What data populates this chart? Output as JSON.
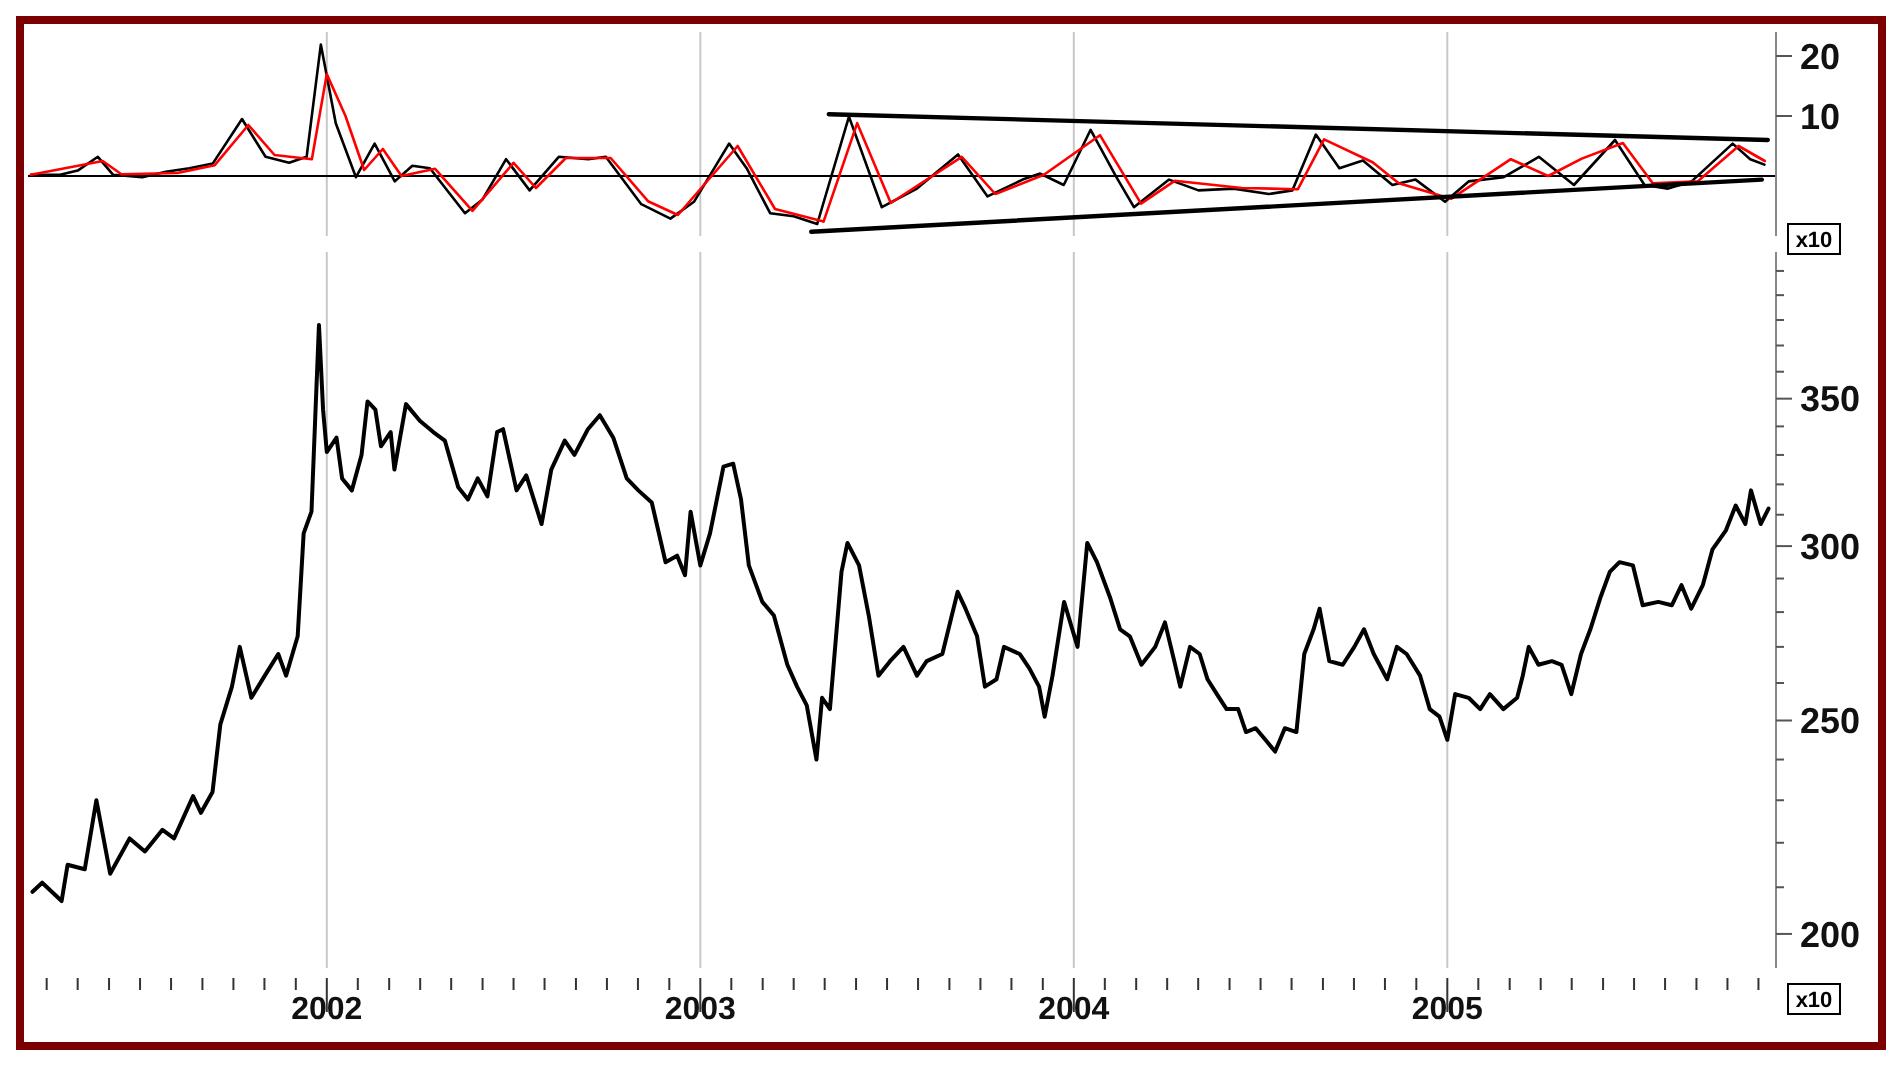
{
  "chart_data": [
    {
      "type": "line",
      "xlim": [
        2001.2,
        2005.88
      ],
      "ylim": [
        -10,
        24
      ],
      "xticks": [
        2002,
        2003,
        2004,
        2005
      ],
      "yticks": [
        10,
        20
      ],
      "grid": "x",
      "tick_labels": "y",
      "ref_lines": [
        {
          "axis": "y",
          "value": 0,
          "color": "#000000"
        }
      ],
      "annotations": [
        "x10"
      ],
      "series": [
        {
          "color": "#000000",
          "x": [
            2001.208,
            2001.286,
            2001.333,
            2001.387,
            2001.428,
            2001.506,
            2001.569,
            2001.632,
            2001.695,
            2001.773,
            2001.836,
            2001.899,
            2001.946,
            2001.984,
            2002.024,
            2002.078,
            2002.128,
            2002.182,
            2002.229,
            2002.276,
            2002.37,
            2002.417,
            2002.48,
            2002.543,
            2002.621,
            2002.7,
            2002.747,
            2002.842,
            2002.92,
            2002.983,
            2003.077,
            2003.124,
            2003.187,
            2003.25,
            2003.313,
            2003.398,
            2003.486,
            2003.58,
            2003.69,
            2003.769,
            2003.863,
            2003.91,
            2003.973,
            2004.045,
            2004.114,
            2004.161,
            2004.255,
            2004.334,
            2004.428,
            2004.522,
            2004.585,
            2004.648,
            2004.711,
            2004.774,
            2004.853,
            2004.915,
            2004.994,
            2005.057,
            2005.151,
            2005.245,
            2005.339,
            2005.449,
            2005.528,
            2005.591,
            2005.654,
            2005.764,
            2005.811,
            2005.849
          ],
          "values": [
            0.2,
            0.2,
            0.9,
            3.2,
            0.2,
            -0.2,
            0.7,
            1.3,
            2.1,
            9.5,
            3.2,
            2.2,
            3.2,
            21.9,
            8.8,
            -0.2,
            5.4,
            -0.9,
            1.7,
            1.3,
            -6.2,
            -3.9,
            2.8,
            -2.4,
            3.2,
            2.8,
            3.2,
            -4.7,
            -7.1,
            -4.3,
            5.4,
            1.3,
            -6.2,
            -6.7,
            -8,
            9.9,
            -5.2,
            -2.1,
            3.6,
            -3.4,
            -0.6,
            0.4,
            -1.5,
            7.7,
            -0.2,
            -5.2,
            -0.6,
            -2.4,
            -2.1,
            -3,
            -2.4,
            6.9,
            1.3,
            2.6,
            -1.5,
            -0.6,
            -4.3,
            -0.9,
            -0.2,
            3.2,
            -1.5,
            6,
            -1.5,
            -2.1,
            -0.9,
            5.4,
            2.8,
            1.9
          ]
        },
        {
          "color": "#ff0000",
          "x": [
            2001.208,
            2001.4,
            2001.45,
            2001.6,
            2001.7,
            2001.79,
            2001.86,
            2001.96,
            2002.0,
            2002.05,
            2002.1,
            2002.15,
            2002.2,
            2002.29,
            2002.39,
            2002.5,
            2002.56,
            2002.64,
            2002.76,
            2002.86,
            2002.94,
            2003.1,
            2003.2,
            2003.33,
            2003.42,
            2003.51,
            2003.7,
            2003.79,
            2003.92,
            2004.07,
            2004.18,
            2004.27,
            2004.45,
            2004.6,
            2004.67,
            2004.8,
            2004.87,
            2005.01,
            2005.17,
            2005.27,
            2005.36,
            2005.47,
            2005.55,
            2005.67,
            2005.78,
            2005.85
          ],
          "values": [
            0.2,
            2.5,
            0.3,
            0.5,
            1.8,
            8.5,
            3.5,
            2.8,
            17,
            10,
            1,
            4.5,
            0,
            1.2,
            -5.8,
            2.2,
            -2,
            3,
            3,
            -4.2,
            -6.5,
            5,
            -5.5,
            -7.6,
            8.8,
            -4.5,
            3.2,
            -3,
            0.2,
            6.8,
            -4.6,
            -0.8,
            -2,
            -2.2,
            6.1,
            2.3,
            -1.2,
            -3.8,
            2.8,
            0,
            2.9,
            5.5,
            -1.2,
            -0.9,
            5,
            2.5
          ]
        },
        {
          "color": "#000000",
          "x": [
            2003.344,
            2005.858
          ],
          "values": [
            10.3,
            6
          ]
        },
        {
          "color": "#000000",
          "x": [
            2003.297,
            2005.842
          ],
          "values": [
            -9.3,
            -0.6
          ]
        }
      ]
    },
    {
      "type": "line",
      "log": true,
      "xlim": [
        2001.2,
        2005.88
      ],
      "ylim": [
        193,
        408
      ],
      "grid": "x",
      "annotations": [
        "x10"
      ],
      "xticks": [
        {
          "value": 2001.25,
          "label": null
        },
        {
          "value": 2001.333,
          "label": null
        },
        {
          "value": 2001.417,
          "label": null
        },
        {
          "value": 2001.5,
          "label": null
        },
        {
          "value": 2001.583,
          "label": null
        },
        {
          "value": 2001.667,
          "label": null
        },
        {
          "value": 2001.75,
          "label": null
        },
        {
          "value": 2001.833,
          "label": null
        },
        {
          "value": 2001.917,
          "label": null
        },
        2002,
        {
          "value": 2002.083,
          "label": null
        },
        {
          "value": 2002.167,
          "label": null
        },
        {
          "value": 2002.25,
          "label": null
        },
        {
          "value": 2002.333,
          "label": null
        },
        {
          "value": 2002.417,
          "label": null
        },
        {
          "value": 2002.5,
          "label": null
        },
        {
          "value": 2002.583,
          "label": null
        },
        {
          "value": 2002.667,
          "label": null
        },
        {
          "value": 2002.75,
          "label": null
        },
        {
          "value": 2002.833,
          "label": null
        },
        {
          "value": 2002.917,
          "label": null
        },
        2003,
        {
          "value": 2003.083,
          "label": null
        },
        {
          "value": 2003.167,
          "label": null
        },
        {
          "value": 2003.25,
          "label": null
        },
        {
          "value": 2003.333,
          "label": null
        },
        {
          "value": 2003.417,
          "label": null
        },
        {
          "value": 2003.5,
          "label": null
        },
        {
          "value": 2003.583,
          "label": null
        },
        {
          "value": 2003.667,
          "label": null
        },
        {
          "value": 2003.75,
          "label": null
        },
        {
          "value": 2003.833,
          "label": null
        },
        {
          "value": 2003.917,
          "label": null
        },
        2004,
        {
          "value": 2004.083,
          "label": null
        },
        {
          "value": 2004.167,
          "label": null
        },
        {
          "value": 2004.25,
          "label": null
        },
        {
          "value": 2004.333,
          "label": null
        },
        {
          "value": 2004.417,
          "label": null
        },
        {
          "value": 2004.5,
          "label": null
        },
        {
          "value": 2004.583,
          "label": null
        },
        {
          "value": 2004.667,
          "label": null
        },
        {
          "value": 2004.75,
          "label": null
        },
        {
          "value": 2004.833,
          "label": null
        },
        {
          "value": 2004.917,
          "label": null
        },
        2005,
        {
          "value": 2005.083,
          "label": null
        },
        {
          "value": 2005.167,
          "label": null
        },
        {
          "value": 2005.25,
          "label": null
        },
        {
          "value": 2005.333,
          "label": null
        },
        {
          "value": 2005.417,
          "label": null
        },
        {
          "value": 2005.5,
          "label": null
        },
        {
          "value": 2005.583,
          "label": null
        },
        {
          "value": 2005.667,
          "label": null
        },
        {
          "value": 2005.75,
          "label": null
        },
        {
          "value": 2005.833,
          "label": null
        }
      ],
      "yticks": [
        200,
        {
          "value": 210,
          "label": null
        },
        {
          "value": 220,
          "label": null
        },
        {
          "value": 230,
          "label": null
        },
        {
          "value": 240,
          "label": null
        },
        250,
        {
          "value": 260,
          "label": null
        },
        {
          "value": 270,
          "label": null
        },
        {
          "value": 280,
          "label": null
        },
        {
          "value": 290,
          "label": null
        },
        300,
        {
          "value": 310,
          "label": null
        },
        {
          "value": 320,
          "label": null
        },
        {
          "value": 330,
          "label": null
        },
        {
          "value": 340,
          "label": null
        },
        350,
        {
          "value": 360,
          "label": null
        },
        {
          "value": 370,
          "label": null
        },
        {
          "value": 380,
          "label": null
        },
        {
          "value": 390,
          "label": null
        },
        {
          "value": 400,
          "label": null
        }
      ],
      "series": [
        {
          "color": "#000000",
          "x": [
            2001.212,
            2001.238,
            2001.29,
            2001.306,
            2001.352,
            2001.383,
            2001.42,
            2001.472,
            2001.513,
            2001.56,
            2001.591,
            2001.642,
            2001.663,
            2001.694,
            2001.715,
            2001.746,
            2001.767,
            2001.798,
            2001.834,
            2001.87,
            2001.891,
            2001.922,
            2001.938,
            2001.959,
            2001.969,
            2001.979,
            2001.99,
            2002.0,
            2002.026,
            2002.041,
            2002.067,
            2002.093,
            2002.109,
            2002.13,
            2002.145,
            2002.171,
            2002.181,
            2002.212,
            2002.249,
            2002.285,
            2002.316,
            2002.352,
            2002.378,
            2002.404,
            2002.43,
            2002.456,
            2002.472,
            2002.508,
            2002.534,
            2002.575,
            2002.601,
            2002.637,
            2002.663,
            2002.699,
            2002.731,
            2002.767,
            2002.803,
            2002.834,
            2002.87,
            2002.907,
            2002.938,
            2002.959,
            2002.974,
            2003.0,
            2003.026,
            2003.062,
            2003.088,
            2003.109,
            2003.13,
            2003.166,
            2003.197,
            2003.233,
            2003.259,
            2003.285,
            2003.311,
            2003.326,
            2003.347,
            2003.378,
            2003.394,
            2003.425,
            2003.451,
            2003.477,
            2003.508,
            2003.544,
            2003.58,
            2003.606,
            2003.648,
            2003.689,
            2003.71,
            2003.741,
            2003.762,
            2003.793,
            2003.813,
            2003.855,
            2003.881,
            2003.907,
            2003.922,
            2003.943,
            2003.974,
            2004.01,
            2004.036,
            2004.062,
            2004.098,
            2004.124,
            2004.15,
            2004.181,
            2004.218,
            2004.244,
            2004.269,
            2004.285,
            2004.311,
            2004.337,
            2004.358,
            2004.383,
            2004.409,
            2004.44,
            2004.461,
            2004.487,
            2004.513,
            2004.539,
            2004.565,
            2004.596,
            2004.617,
            2004.642,
            2004.658,
            2004.684,
            2004.72,
            2004.751,
            2004.777,
            2004.803,
            2004.839,
            2004.865,
            2004.891,
            2004.927,
            2004.953,
            2004.979,
            2005.0,
            2005.021,
            2005.057,
            2005.088,
            2005.114,
            2005.15,
            2005.187,
            2005.202,
            2005.218,
            2005.244,
            2005.28,
            2005.306,
            2005.332,
            2005.358,
            2005.383,
            2005.409,
            2005.435,
            2005.461,
            2005.497,
            2005.523,
            2005.565,
            2005.601,
            2005.627,
            2005.653,
            2005.684,
            2005.71,
            2005.746,
            2005.772,
            2005.798,
            2005.813,
            2005.839,
            2005.86
          ],
          "values": [
            209,
            211,
            207,
            215,
            214,
            230,
            213,
            221,
            218,
            223,
            221,
            231,
            227,
            232,
            249,
            259,
            270,
            256,
            262,
            268,
            262,
            273,
            304,
            311,
            343,
            378,
            346,
            331,
            336,
            322,
            318,
            330,
            349,
            346,
            333,
            338,
            325,
            348,
            342,
            338,
            335,
            319,
            315,
            322,
            316,
            338,
            339,
            318,
            323,
            307,
            325,
            335,
            330,
            339,
            344,
            336,
            322,
            318,
            314,
            295,
            297,
            291,
            311,
            294,
            304,
            326,
            327,
            315,
            294,
            283,
            279,
            265,
            259,
            254,
            240,
            256,
            253,
            292,
            301,
            294,
            279,
            262,
            266,
            270,
            262,
            266,
            268,
            286,
            281,
            273,
            259,
            261,
            270,
            268,
            264,
            259,
            251,
            262,
            283,
            270,
            301,
            295,
            284,
            275,
            273,
            265,
            270,
            277,
            266,
            259,
            270,
            268,
            261,
            257,
            253,
            253,
            247,
            248,
            245,
            242,
            248,
            247,
            268,
            275,
            281,
            266,
            265,
            270,
            275,
            268,
            261,
            270,
            268,
            262,
            253,
            251,
            245,
            257,
            256,
            253,
            257,
            253,
            256,
            262,
            270,
            265,
            266,
            265,
            257,
            268,
            275,
            284,
            292,
            295,
            294,
            282,
            283,
            282,
            288,
            281,
            288,
            299,
            305,
            313,
            307,
            318,
            307,
            312
          ]
        }
      ]
    }
  ]
}
